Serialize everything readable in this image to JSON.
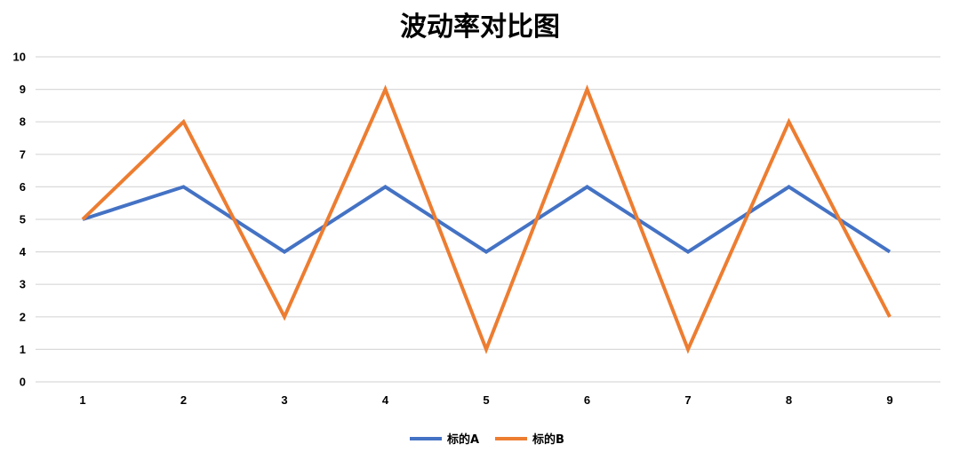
{
  "chart_data": {
    "type": "line",
    "title": "波动率对比图",
    "xlabel": "",
    "ylabel": "",
    "categories": [
      "1",
      "2",
      "3",
      "4",
      "5",
      "6",
      "7",
      "8",
      "9"
    ],
    "ylim": [
      0,
      10
    ],
    "yticks": [
      "0",
      "1",
      "2",
      "3",
      "4",
      "5",
      "6",
      "7",
      "8",
      "9",
      "10"
    ],
    "grid": true,
    "legend_position": "bottom-center",
    "series": [
      {
        "name": "标的A",
        "color": "#4472c4",
        "values": [
          5,
          6,
          4,
          6,
          4,
          6,
          4,
          6,
          4
        ]
      },
      {
        "name": "标的B",
        "color": "#ed7d31",
        "values": [
          5,
          8,
          2,
          9,
          1,
          9,
          1,
          8,
          2
        ]
      }
    ]
  }
}
